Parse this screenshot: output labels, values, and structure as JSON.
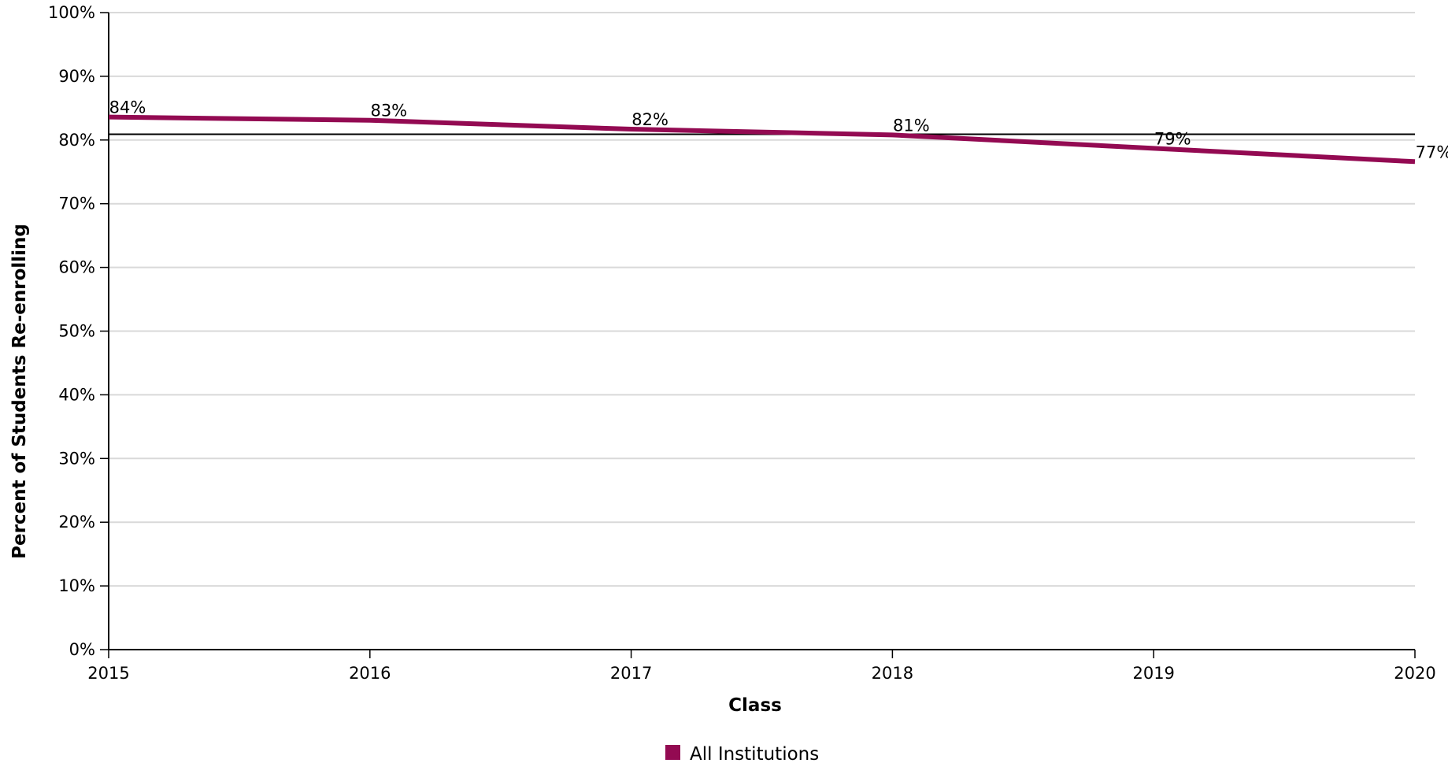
{
  "chart_data": {
    "type": "line",
    "xlabel": "Class",
    "ylabel": "Percent of Students Re-enrolling",
    "x": [
      "2015",
      "2016",
      "2017",
      "2018",
      "2019",
      "2020"
    ],
    "series": [
      {
        "name": "All Institutions",
        "values": [
          83.6,
          83.1,
          81.7,
          80.8,
          78.7,
          76.6
        ],
        "labels": [
          "84%",
          "83%",
          "82%",
          "81%",
          "79%",
          "77%"
        ],
        "color": "#930a52"
      }
    ],
    "reference_line": 80.9,
    "ylim": [
      0,
      100
    ],
    "yticks": [
      0,
      10,
      20,
      30,
      40,
      50,
      60,
      70,
      80,
      90,
      100
    ],
    "ytick_labels": [
      "0%",
      "10%",
      "20%",
      "30%",
      "40%",
      "50%",
      "60%",
      "70%",
      "80%",
      "90%",
      "100%"
    ],
    "grid": true,
    "legend_position": "bottom-center"
  }
}
